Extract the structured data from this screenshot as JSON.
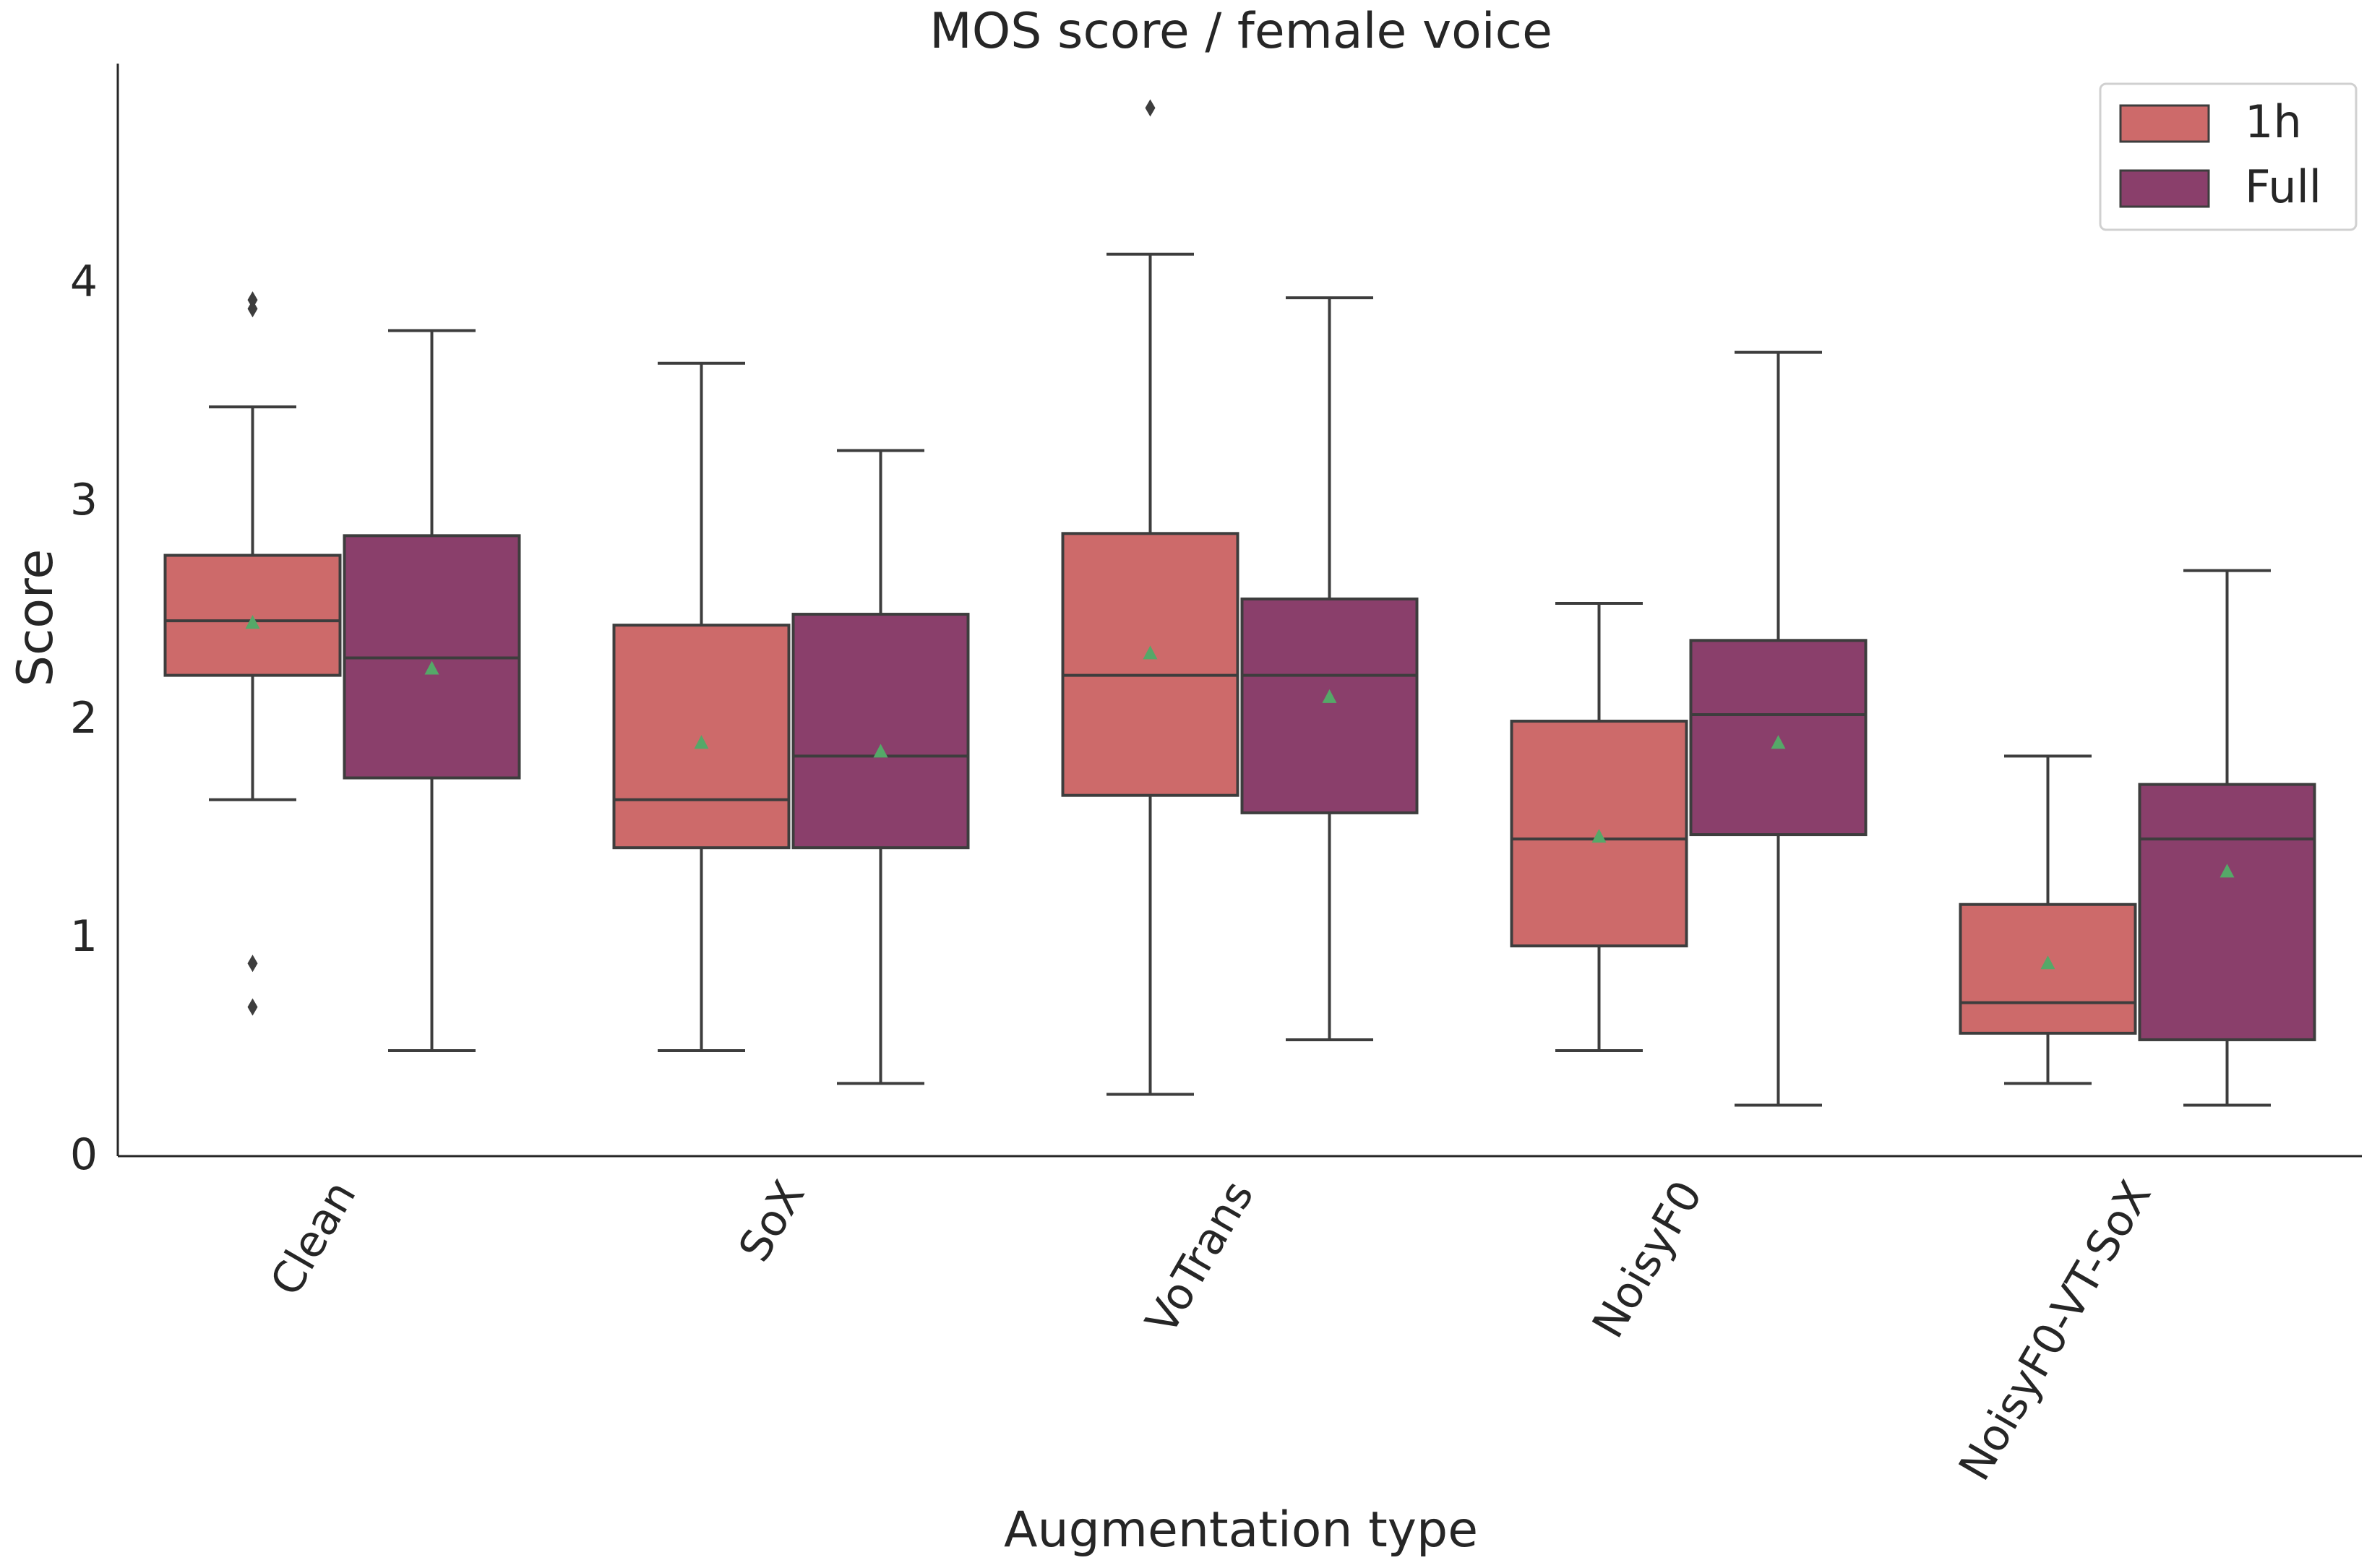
{
  "chart_data": {
    "type": "boxplot",
    "title": "MOS score / female voice",
    "xlabel": "Augmentation type",
    "ylabel": "Score",
    "ylim": [
      0,
      5
    ],
    "yticks": [
      "0",
      "1",
      "2",
      "3",
      "4"
    ],
    "categories": [
      "Clean",
      "SoX",
      "VoTrans",
      "NoisyF0",
      "NoisyF0-VT-SoX"
    ],
    "legend": {
      "position": "top-right",
      "entries": [
        "1h",
        "Full"
      ]
    },
    "colors": {
      "1h": "#cd6a6a",
      "Full": "#8a3f6b",
      "mean": "#55a868",
      "line": "#3d3d3d"
    },
    "series": [
      {
        "name": "1h",
        "boxes": [
          {
            "whisker_low": 1.62,
            "q1": 2.19,
            "median": 2.44,
            "q3": 2.74,
            "whisker_high": 3.42,
            "mean": 2.43,
            "outliers": [
              0.67,
              0.87,
              3.87,
              3.91
            ]
          },
          {
            "whisker_low": 0.47,
            "q1": 1.4,
            "median": 1.62,
            "q3": 2.42,
            "whisker_high": 3.62,
            "mean": 1.88,
            "outliers": []
          },
          {
            "whisker_low": 0.27,
            "q1": 1.64,
            "median": 2.19,
            "q3": 2.84,
            "whisker_high": 4.12,
            "mean": 2.29,
            "outliers": [
              4.79
            ]
          },
          {
            "whisker_low": 0.47,
            "q1": 0.95,
            "median": 1.44,
            "q3": 1.98,
            "whisker_high": 2.52,
            "mean": 1.45,
            "outliers": []
          },
          {
            "whisker_low": 0.32,
            "q1": 0.55,
            "median": 0.69,
            "q3": 1.14,
            "whisker_high": 1.82,
            "mean": 0.87,
            "outliers": []
          }
        ]
      },
      {
        "name": "Full",
        "boxes": [
          {
            "whisker_low": 0.47,
            "q1": 1.72,
            "median": 2.27,
            "q3": 2.83,
            "whisker_high": 3.77,
            "mean": 2.22,
            "outliers": []
          },
          {
            "whisker_low": 0.32,
            "q1": 1.4,
            "median": 1.82,
            "q3": 2.47,
            "whisker_high": 3.22,
            "mean": 1.84,
            "outliers": []
          },
          {
            "whisker_low": 0.52,
            "q1": 1.56,
            "median": 2.19,
            "q3": 2.54,
            "whisker_high": 3.92,
            "mean": 2.09,
            "outliers": []
          },
          {
            "whisker_low": 0.22,
            "q1": 1.46,
            "median": 2.01,
            "q3": 2.35,
            "whisker_high": 3.67,
            "mean": 1.88,
            "outliers": []
          },
          {
            "whisker_low": 0.22,
            "q1": 0.52,
            "median": 1.44,
            "q3": 1.69,
            "whisker_high": 2.67,
            "mean": 1.29,
            "outliers": []
          }
        ]
      }
    ]
  }
}
